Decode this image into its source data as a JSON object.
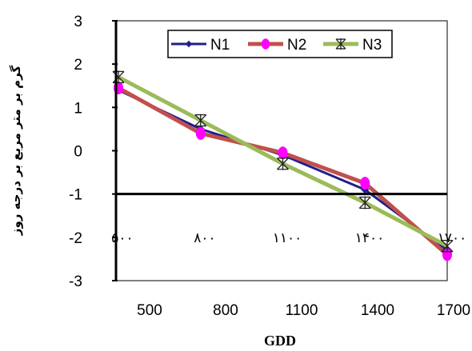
{
  "chart_data": {
    "type": "line",
    "x": [
      500,
      800,
      1100,
      1400,
      1700
    ],
    "x_tick_labels": [
      "500",
      "800",
      "1100",
      "1400",
      "1700"
    ],
    "inner_x_labels": [
      "۵۰۰",
      "۸۰۰",
      "۱۱۰۰",
      "۱۴۰۰",
      "۱۷۰۰"
    ],
    "xlabel": "GDD",
    "ylabel": "گرم بر متر مربع بر درجه روز",
    "ylim": [
      -3,
      3
    ],
    "y_ticks": [
      3,
      2,
      1,
      0,
      -1,
      -2,
      -3
    ],
    "legend_position": "top-right",
    "series": [
      {
        "name": "N1",
        "color": "#1f1f8c",
        "marker": "diamond",
        "values": [
          1.4,
          0.5,
          -0.1,
          -0.9,
          -2.3
        ]
      },
      {
        "name": "N2",
        "color": "#c0504d",
        "marker": "circle",
        "marker_color": "#ff00ff",
        "values": [
          1.45,
          0.4,
          -0.05,
          -0.75,
          -2.4
        ]
      },
      {
        "name": "N3",
        "color": "#9bbb59",
        "marker": "star",
        "values": [
          1.7,
          0.7,
          -0.3,
          -1.2,
          -2.2
        ]
      }
    ]
  }
}
